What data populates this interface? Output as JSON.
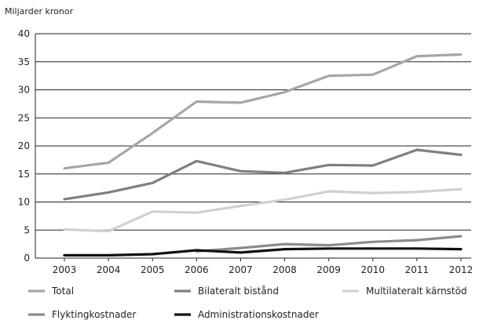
{
  "chart_data": {
    "type": "line",
    "title": "",
    "ylabel": "Miljarder kronor",
    "xlabel": "",
    "x": [
      "2003",
      "2004",
      "2005",
      "2006",
      "2007",
      "2008",
      "2009",
      "2010",
      "2011",
      "2012"
    ],
    "ylim": [
      0,
      40
    ],
    "yticks": [
      "0",
      "5",
      "10",
      "15",
      "20",
      "25",
      "30",
      "35",
      "40"
    ],
    "grid": true,
    "legend_position": "bottom",
    "series": [
      {
        "name": "Total",
        "color": "#a6a6a6",
        "values": [
          16.0,
          17.0,
          22.3,
          27.9,
          27.7,
          29.6,
          32.5,
          32.7,
          36.0,
          36.3
        ]
      },
      {
        "name": "Bilateralt bistånd",
        "color": "#7f7f7f",
        "values": [
          10.5,
          11.7,
          13.4,
          17.3,
          15.5,
          15.2,
          16.6,
          16.5,
          19.3,
          18.4
        ]
      },
      {
        "name": "Multilateralt kärnstöd",
        "color": "#d0d0d0",
        "values": [
          5.1,
          4.8,
          8.3,
          8.1,
          9.3,
          10.4,
          11.9,
          11.6,
          11.8,
          12.3
        ]
      },
      {
        "name": "Flyktingkostnader",
        "color": "#8c8c8c",
        "values": [
          null,
          null,
          null,
          1.2,
          1.8,
          2.5,
          2.3,
          2.9,
          3.2,
          3.9
        ]
      },
      {
        "name": "Administrationskostnader",
        "color": "#111111",
        "values": [
          0.5,
          0.5,
          0.7,
          1.4,
          1.0,
          1.6,
          1.7,
          1.7,
          1.7,
          1.6
        ]
      }
    ]
  }
}
